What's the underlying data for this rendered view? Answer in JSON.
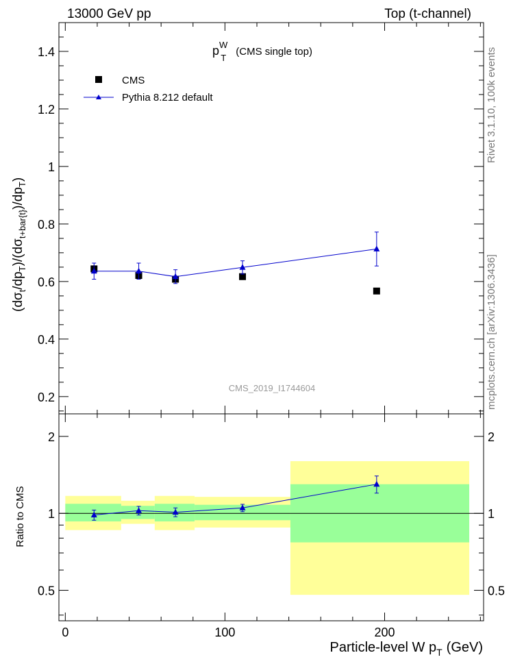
{
  "header": {
    "left": "13000 GeV pp",
    "right": "Top (t-channel)"
  },
  "plot_title": {
    "main": "p",
    "sup": "W",
    "sub": "T",
    "rest": "(CMS single top)"
  },
  "side_labels": {
    "rivet": "Rivet 3.1.10,  100k events",
    "mcplots": "mcplots.cern.ch [arXiv:1306.3436]"
  },
  "watermark": "CMS_2019_I1744604",
  "colors": {
    "mc": "#0000cc",
    "data": "#000000",
    "band_stat": "#99ff99",
    "band_total": "#ffff99"
  },
  "chart_data": [
    {
      "type": "scatter",
      "panel": "main",
      "ylabel_parts": {
        "a": "(dσ",
        "a_sub": "t",
        "b": "/dp",
        "b_sub": "T",
        "c": ")/(dσ",
        "c_sub": "t+bar{t}",
        "d": ")/dp",
        "d_sub": "T",
        "e": ")"
      },
      "xlim": [
        -4,
        262
      ],
      "ylim": [
        0.14,
        1.5
      ],
      "yticks": [
        0.2,
        0.4,
        0.6,
        0.8,
        1.0,
        1.2,
        1.4
      ],
      "ytick_labels": [
        "0.2",
        "0.4",
        "0.6",
        "0.8",
        "1",
        "1.2",
        "1.4"
      ],
      "legend": {
        "position": "top-left",
        "entries": [
          {
            "label": "CMS",
            "marker": "square"
          },
          {
            "label": "Pythia 8.212 default",
            "marker": "triangle-line"
          }
        ]
      },
      "series": [
        {
          "name": "CMS",
          "x": [
            18,
            46,
            69,
            111,
            195
          ],
          "y": [
            0.644,
            0.621,
            0.608,
            0.617,
            0.567
          ],
          "yerr": [
            0.014,
            0.013,
            0.013,
            0.01,
            0.008
          ]
        },
        {
          "name": "Pythia 8.212 default",
          "x": [
            18,
            46,
            69,
            111,
            195
          ],
          "y": [
            0.636,
            0.636,
            0.617,
            0.649,
            0.713
          ],
          "yerr": [
            0.028,
            0.028,
            0.024,
            0.023,
            0.059
          ]
        }
      ]
    },
    {
      "type": "scatter",
      "panel": "ratio",
      "ylabel": "Ratio to CMS",
      "xlabel": "Particle-level W p",
      "xlabel_sub": "T",
      "xlabel_unit": "(GeV)",
      "xlim": [
        -4,
        262
      ],
      "ylim": [
        0.38,
        2.45
      ],
      "yscale": "log",
      "xticks": [
        0,
        100,
        200
      ],
      "xtick_labels": [
        "0",
        "100",
        "200"
      ],
      "yticks": [
        0.5,
        1,
        2
      ],
      "ytick_labels": [
        "0.5",
        "1",
        "2"
      ],
      "bins": [
        {
          "x": [
            0,
            35
          ],
          "stat": [
            0.93,
            1.09
          ],
          "total": [
            0.86,
            1.17
          ]
        },
        {
          "x": [
            35,
            56
          ],
          "stat": [
            0.95,
            1.07
          ],
          "total": [
            0.91,
            1.12
          ]
        },
        {
          "x": [
            56,
            81
          ],
          "stat": [
            0.93,
            1.09
          ],
          "total": [
            0.86,
            1.17
          ]
        },
        {
          "x": [
            81,
            141
          ],
          "stat": [
            0.94,
            1.08
          ],
          "total": [
            0.88,
            1.16
          ]
        },
        {
          "x": [
            141,
            253
          ],
          "stat": [
            0.77,
            1.3
          ],
          "total": [
            0.48,
            1.6
          ]
        }
      ],
      "series": [
        {
          "name": "Pythia 8.212 default",
          "x": [
            18,
            46,
            69,
            111,
            195
          ],
          "y": [
            0.985,
            1.025,
            1.01,
            1.05,
            1.3
          ],
          "yerr": [
            0.045,
            0.04,
            0.04,
            0.035,
            0.1
          ]
        }
      ]
    }
  ]
}
